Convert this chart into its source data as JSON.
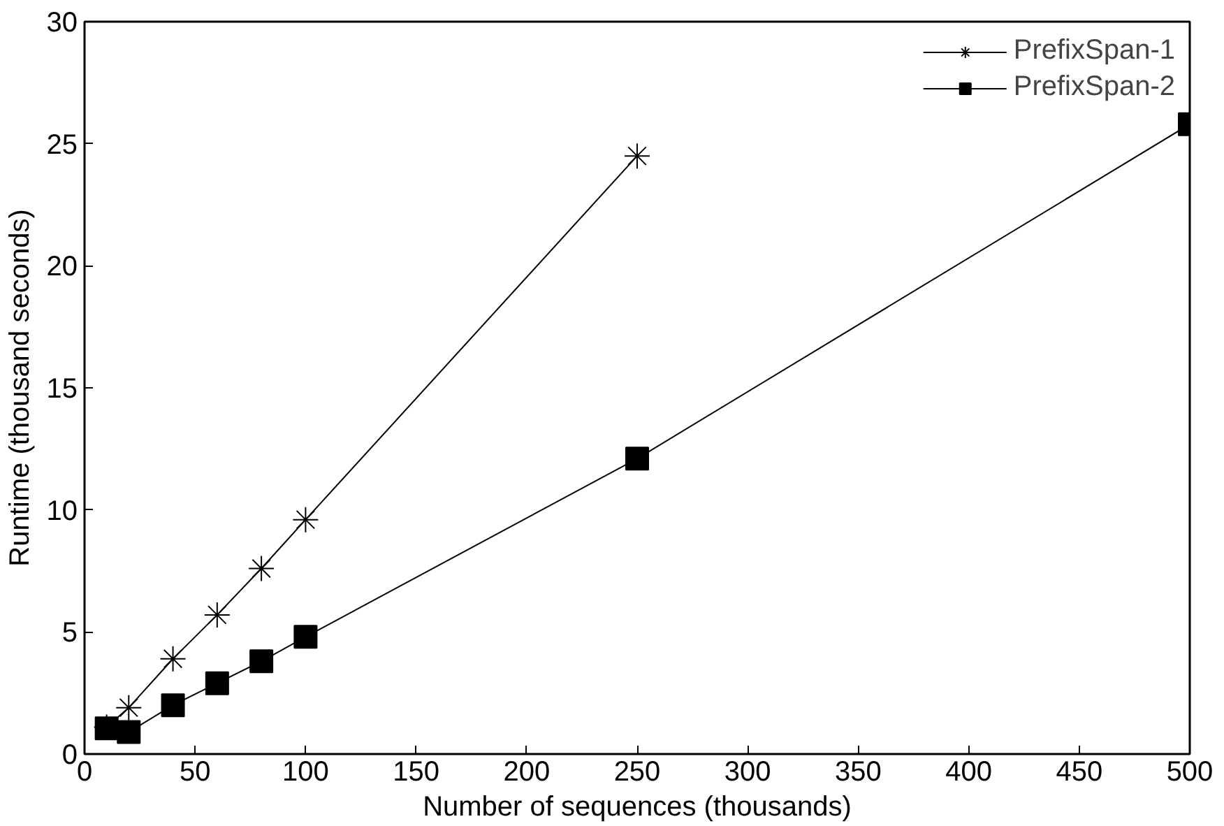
{
  "chart_data": {
    "type": "line",
    "xlabel": "Number of sequences (thousands)",
    "ylabel": "Runtime (thousand seconds)",
    "xlim": [
      0,
      500
    ],
    "ylim": [
      0,
      30
    ],
    "xticks": [
      0,
      50,
      100,
      150,
      200,
      250,
      300,
      350,
      400,
      450,
      500
    ],
    "yticks": [
      0,
      5,
      10,
      15,
      20,
      25,
      30
    ],
    "grid": false,
    "legend": "top right",
    "series": [
      {
        "name": "PrefixSpan-1",
        "color": "#000000",
        "marker": "cross",
        "x": [
          10,
          20,
          40,
          60,
          80,
          100,
          250
        ],
        "values": [
          1.1,
          1.9,
          3.9,
          5.7,
          7.6,
          9.6,
          24.5
        ]
      },
      {
        "name": "PrefixSpan-2",
        "color": "#000000",
        "marker": "square",
        "x": [
          10,
          20,
          40,
          60,
          80,
          100,
          250,
          500
        ],
        "values": [
          1.05,
          0.9,
          2.0,
          2.9,
          3.8,
          4.8,
          12.1,
          25.8
        ]
      }
    ]
  }
}
